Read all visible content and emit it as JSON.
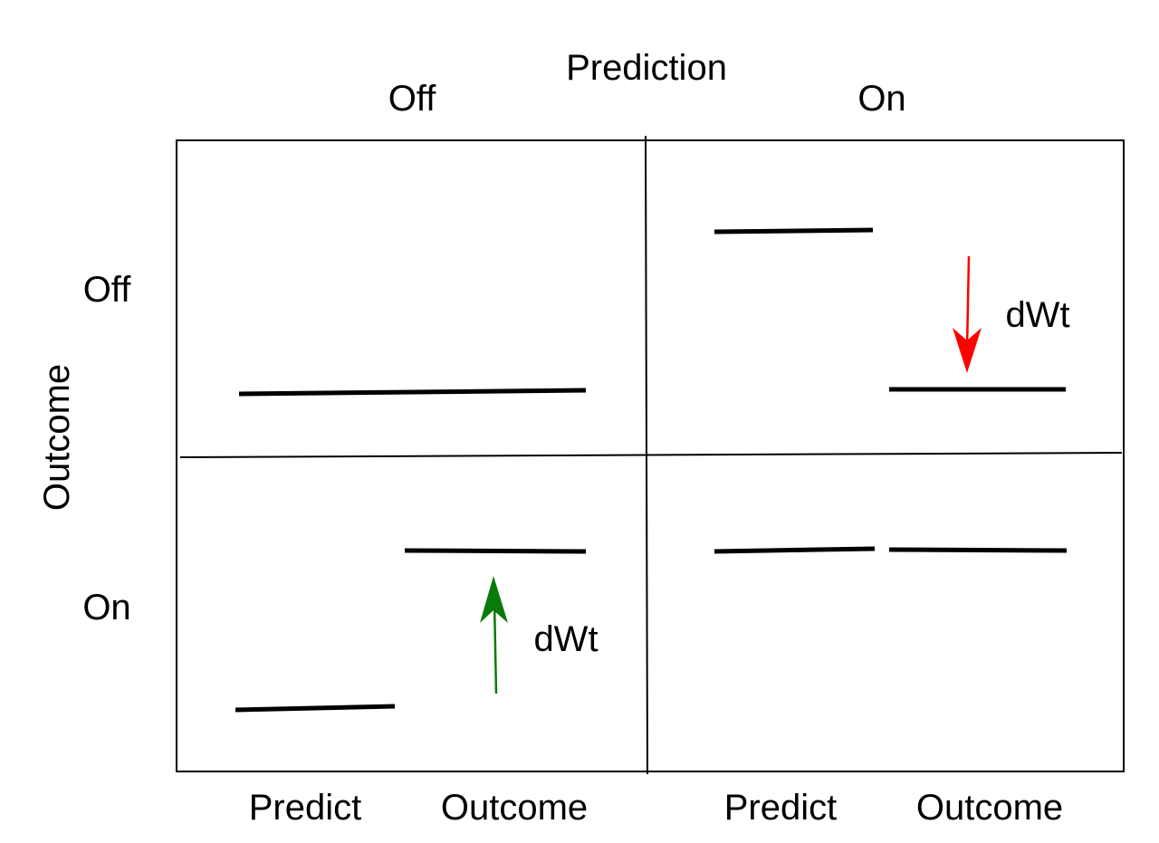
{
  "header": {
    "title": "Prediction",
    "col_off": "Off",
    "col_on": "On"
  },
  "row_axis": {
    "title": "Outcome",
    "row_off": "Off",
    "row_on": "On"
  },
  "footer": {
    "left_predict": "Predict",
    "left_outcome": "Outcome",
    "right_predict": "Predict",
    "right_outcome": "Outcome"
  },
  "annotations": {
    "decrease_label": "dWt",
    "increase_label": "dWt"
  },
  "colors": {
    "decrease_arrow": "#ff0000",
    "increase_arrow": "#0a7a0a",
    "ink": "#000000"
  }
}
